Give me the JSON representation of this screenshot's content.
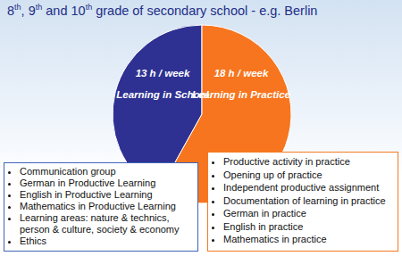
{
  "chart_data": {
    "type": "pie",
    "title": "8th, 9th and 10th grade of secondary school - e.g. Berlin",
    "categories": [
      "Learning in School",
      "Learning in Practice"
    ],
    "values": [
      13,
      18
    ],
    "value_labels": [
      "13 h / week",
      "18 h / week"
    ],
    "colors": [
      "#2e3192",
      "#f7751e"
    ],
    "data_labels": true
  },
  "boxes": [
    [
      "Communication group",
      "German in Productive Learning",
      "English in Productive Learning",
      "Mathematics in Productive Learning",
      "Learning areas: nature & technics, person & culture, society & economy",
      "Ethics"
    ],
    [
      "Productive activity in practice",
      "Opening up of practice",
      "Independent productive assignment",
      "Documentation of learning in practice",
      "German in practice",
      "English in practice",
      "Mathematics in practice"
    ]
  ]
}
